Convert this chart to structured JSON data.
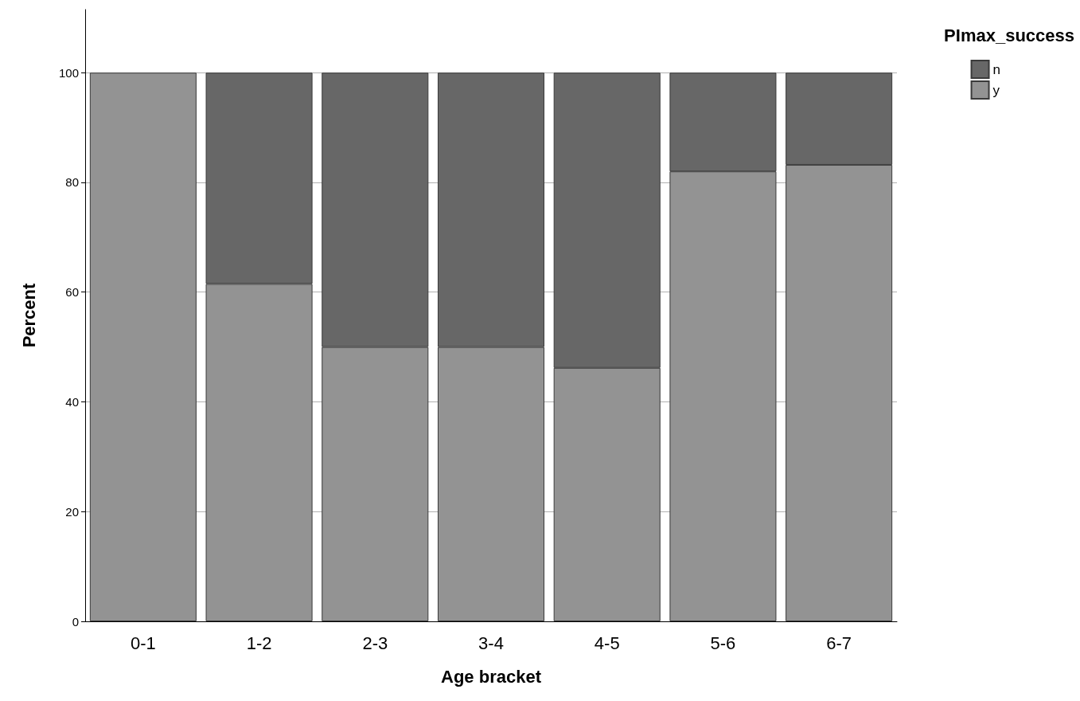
{
  "chart_data": {
    "type": "bar",
    "stacked": true,
    "xlabel": "Age bracket",
    "ylabel": "Percent",
    "legend_title": "PImax_success",
    "categories": [
      "0-1",
      "1-2",
      "2-3",
      "3-4",
      "4-5",
      "5-6",
      "6-7"
    ],
    "series": [
      {
        "name": "y",
        "color": "#939393",
        "values": [
          100,
          61.5,
          50,
          50,
          46.2,
          82,
          83.2
        ]
      },
      {
        "name": "n",
        "color": "#676767",
        "values": [
          null,
          38.5,
          50,
          50,
          53.8,
          18,
          16.8
        ]
      }
    ],
    "ylim": [
      0,
      111.5
    ],
    "yticks": [
      0,
      20,
      40,
      60,
      80,
      100
    ],
    "grid": "y",
    "legend": "top right"
  }
}
